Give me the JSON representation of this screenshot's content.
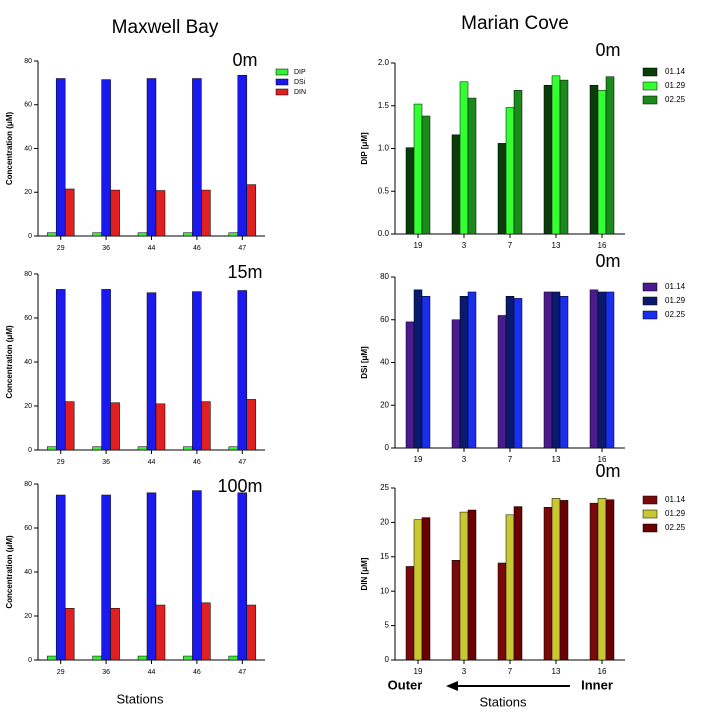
{
  "page": {
    "left_heading": "Maxwell Bay",
    "right_heading": "Marian Cove",
    "left_xlabel": "Stations",
    "right_xlabel": "Stations",
    "outer": "Outer",
    "inner": "Inner"
  },
  "chart_data": [
    {
      "type": "bar",
      "depth_label": "0m",
      "ylabel": "Concentration (μM)",
      "categories": [
        "29",
        "36",
        "44",
        "46",
        "47"
      ],
      "series": [
        {
          "name": "DIP",
          "color": "#33ee33",
          "values": [
            1.5,
            1.5,
            1.5,
            1.5,
            1.5
          ]
        },
        {
          "name": "DSi",
          "color": "#1a1aee",
          "values": [
            72,
            71.5,
            72,
            72,
            73.5
          ]
        },
        {
          "name": "DIN",
          "color": "#e02020",
          "values": [
            21.5,
            21,
            20.8,
            21,
            23.5
          ]
        }
      ],
      "ylim": [
        0,
        80
      ],
      "yticks": [
        0,
        20,
        40,
        60,
        80
      ],
      "legend": "right"
    },
    {
      "type": "bar",
      "depth_label": "15m",
      "ylabel": "Concentration (μM)",
      "categories": [
        "29",
        "36",
        "44",
        "46",
        "47"
      ],
      "series": [
        {
          "color": "#33ee33",
          "values": [
            1.5,
            1.5,
            1.5,
            1.5,
            1.5
          ]
        },
        {
          "color": "#1a1aee",
          "values": [
            73,
            73,
            71.5,
            72,
            72.5
          ]
        },
        {
          "color": "#e02020",
          "values": [
            22,
            21.5,
            21,
            22,
            23
          ]
        }
      ],
      "ylim": [
        0,
        80
      ],
      "yticks": [
        0,
        20,
        40,
        60,
        80
      ]
    },
    {
      "type": "bar",
      "depth_label": "100m",
      "ylabel": "Concentration (μM)",
      "categories": [
        "29",
        "36",
        "44",
        "46",
        "47"
      ],
      "series": [
        {
          "color": "#33ee33",
          "values": [
            1.8,
            1.8,
            1.8,
            1.8,
            1.8
          ]
        },
        {
          "color": "#1a1aee",
          "values": [
            75,
            75,
            76,
            77,
            76
          ]
        },
        {
          "color": "#e02020",
          "values": [
            23.5,
            23.5,
            25,
            26,
            25
          ]
        }
      ],
      "ylim": [
        0,
        80
      ],
      "yticks": [
        0,
        20,
        40,
        60,
        80
      ]
    },
    {
      "type": "bar",
      "depth_label": "0m",
      "ylabel": "DIP [μM]",
      "categories": [
        "19",
        "3",
        "7",
        "13",
        "16"
      ],
      "series": [
        {
          "name": "01.14",
          "color": "#0b3d0b",
          "values": [
            1.01,
            1.16,
            1.06,
            1.74,
            1.74
          ]
        },
        {
          "name": "01.29",
          "color": "#33ff33",
          "values": [
            1.52,
            1.78,
            1.48,
            1.85,
            1.68
          ]
        },
        {
          "name": "02.25",
          "color": "#1a8a1a",
          "values": [
            1.38,
            1.59,
            1.68,
            1.8,
            1.84
          ]
        }
      ],
      "ylim": [
        0,
        2
      ],
      "yticks": [
        {
          "value": 0,
          "label": "0.0"
        },
        {
          "value": 0.5,
          "label": "0.5"
        },
        {
          "value": 1,
          "label": "1.0"
        },
        {
          "value": 1.5,
          "label": "1.5"
        },
        {
          "value": 2,
          "label": "2.0"
        }
      ],
      "legend": "right"
    },
    {
      "type": "bar",
      "depth_label": "0m",
      "ylabel": "DSi [μM]",
      "categories": [
        "19",
        "3",
        "7",
        "13",
        "16"
      ],
      "series": [
        {
          "name": "01.14",
          "color": "#4b1a8c",
          "values": [
            59,
            60,
            62,
            73,
            74
          ]
        },
        {
          "name": "01.29",
          "color": "#0a1a6e",
          "values": [
            74,
            71,
            71,
            73,
            73
          ]
        },
        {
          "name": "02.25",
          "color": "#1a2eee",
          "values": [
            71,
            73,
            70,
            71,
            73
          ]
        }
      ],
      "ylim": [
        0,
        80
      ],
      "yticks": [
        0,
        20,
        40,
        60,
        80
      ],
      "legend": "right"
    },
    {
      "type": "bar",
      "depth_label": "0m",
      "ylabel": "DIN [μM]",
      "categories": [
        "19",
        "3",
        "7",
        "13",
        "16"
      ],
      "series": [
        {
          "name": "01.14",
          "color": "#7a0a0a",
          "values": [
            13.6,
            14.5,
            14.1,
            22.2,
            22.8
          ]
        },
        {
          "name": "01.29",
          "color": "#c8c832",
          "values": [
            20.4,
            21.5,
            21.1,
            23.5,
            23.5
          ]
        },
        {
          "name": "02.25",
          "color": "#6a0000",
          "values": [
            20.7,
            21.8,
            22.3,
            23.2,
            23.3
          ]
        }
      ],
      "ylim": [
        0,
        25
      ],
      "yticks": [
        0,
        5,
        10,
        15,
        20,
        25
      ],
      "legend": "right"
    }
  ]
}
